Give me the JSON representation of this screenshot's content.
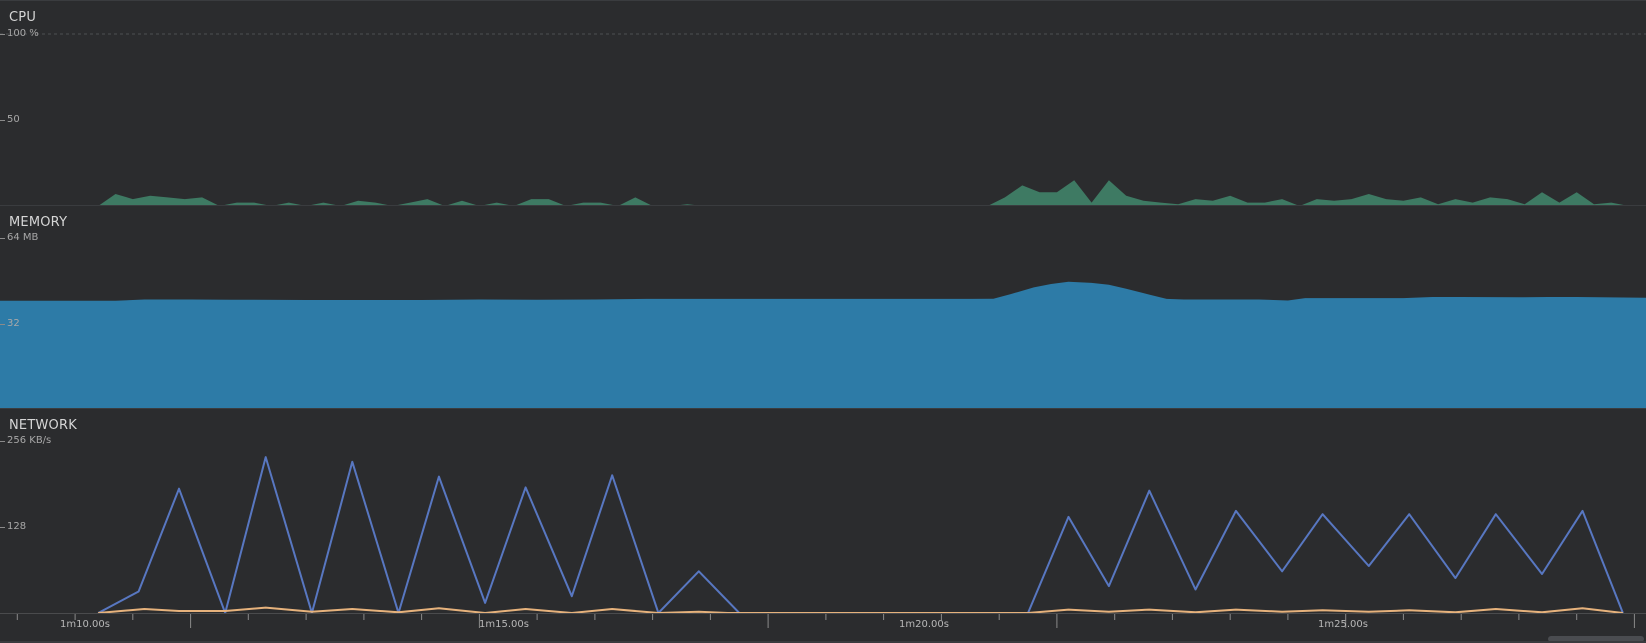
{
  "cpu": {
    "title": "CPU",
    "ticks": [
      "100 %",
      "50"
    ],
    "color": "#3e7a63",
    "chart_data": {
      "type": "area",
      "ylim": [
        0,
        100
      ],
      "x_range": [
        66.7,
        95.2
      ],
      "points": [
        [
          66.7,
          0
        ],
        [
          68.4,
          0
        ],
        [
          68.7,
          7
        ],
        [
          69.0,
          4
        ],
        [
          69.3,
          6
        ],
        [
          69.6,
          5
        ],
        [
          69.9,
          4
        ],
        [
          70.2,
          5
        ],
        [
          70.5,
          0
        ],
        [
          70.8,
          2
        ],
        [
          71.1,
          2
        ],
        [
          71.4,
          0
        ],
        [
          71.7,
          2
        ],
        [
          72.0,
          0
        ],
        [
          72.3,
          2
        ],
        [
          72.6,
          0
        ],
        [
          72.9,
          3
        ],
        [
          73.2,
          2
        ],
        [
          73.5,
          0
        ],
        [
          73.8,
          2
        ],
        [
          74.1,
          4
        ],
        [
          74.4,
          0
        ],
        [
          74.7,
          3
        ],
        [
          75.0,
          0
        ],
        [
          75.3,
          2
        ],
        [
          75.6,
          0
        ],
        [
          75.9,
          4
        ],
        [
          76.2,
          4
        ],
        [
          76.5,
          0
        ],
        [
          76.8,
          2
        ],
        [
          77.1,
          2
        ],
        [
          77.4,
          0
        ],
        [
          77.7,
          5
        ],
        [
          78.0,
          0
        ],
        [
          78.3,
          0
        ],
        [
          78.6,
          1
        ],
        [
          78.9,
          0
        ],
        [
          83.8,
          0
        ],
        [
          84.1,
          5
        ],
        [
          84.4,
          12
        ],
        [
          84.7,
          8
        ],
        [
          85.0,
          8
        ],
        [
          85.3,
          15
        ],
        [
          85.6,
          2
        ],
        [
          85.9,
          15
        ],
        [
          86.2,
          6
        ],
        [
          86.5,
          3
        ],
        [
          86.8,
          2
        ],
        [
          87.1,
          1
        ],
        [
          87.4,
          4
        ],
        [
          87.7,
          3
        ],
        [
          88.0,
          6
        ],
        [
          88.3,
          2
        ],
        [
          88.6,
          2
        ],
        [
          88.9,
          4
        ],
        [
          89.2,
          0
        ],
        [
          89.5,
          4
        ],
        [
          89.8,
          3
        ],
        [
          90.1,
          4
        ],
        [
          90.4,
          7
        ],
        [
          90.7,
          4
        ],
        [
          91.0,
          3
        ],
        [
          91.3,
          5
        ],
        [
          91.6,
          1
        ],
        [
          91.9,
          4
        ],
        [
          92.2,
          2
        ],
        [
          92.5,
          5
        ],
        [
          92.8,
          4
        ],
        [
          93.1,
          1
        ],
        [
          93.4,
          8
        ],
        [
          93.7,
          2
        ],
        [
          94.0,
          8
        ],
        [
          94.3,
          1
        ],
        [
          94.6,
          2
        ],
        [
          94.9,
          0
        ],
        [
          95.2,
          0
        ]
      ]
    }
  },
  "memory": {
    "title": "MEMORY",
    "ticks": [
      "64 MB",
      "32"
    ],
    "color": "#2d7ba7",
    "chart_data": {
      "type": "area",
      "ylim": [
        0,
        64
      ],
      "x_range": [
        66.7,
        95.2
      ],
      "points": [
        [
          66.7,
          40.5
        ],
        [
          68.7,
          40.5
        ],
        [
          69.2,
          41
        ],
        [
          70.0,
          41
        ],
        [
          70.7,
          40.9
        ],
        [
          72.0,
          40.8
        ],
        [
          74.0,
          40.8
        ],
        [
          75.0,
          41
        ],
        [
          76.0,
          40.9
        ],
        [
          77.0,
          41
        ],
        [
          77.9,
          41.2
        ],
        [
          79.0,
          41.2
        ],
        [
          81.0,
          41.2
        ],
        [
          83.5,
          41.2
        ],
        [
          83.9,
          41.3
        ],
        [
          84.2,
          43
        ],
        [
          84.6,
          45.5
        ],
        [
          84.9,
          46.8
        ],
        [
          85.2,
          47.6
        ],
        [
          85.6,
          47.2
        ],
        [
          85.9,
          46.5
        ],
        [
          86.2,
          45
        ],
        [
          86.6,
          42.8
        ],
        [
          86.9,
          41.2
        ],
        [
          87.2,
          41
        ],
        [
          88.0,
          41
        ],
        [
          88.5,
          41
        ],
        [
          89.0,
          40.6
        ],
        [
          89.3,
          41.5
        ],
        [
          90.0,
          41.5
        ],
        [
          91.0,
          41.5
        ],
        [
          91.5,
          41.9
        ],
        [
          92.0,
          41.9
        ],
        [
          93.0,
          41.8
        ],
        [
          93.5,
          41.9
        ],
        [
          94.0,
          41.9
        ],
        [
          95.2,
          41.6
        ]
      ]
    }
  },
  "network": {
    "title": "NETWORK",
    "ticks": [
      "256 KB/s",
      "128"
    ],
    "series_colors": {
      "received": "#5877c1",
      "sent": "#e6b27c"
    },
    "chart_data": {
      "type": "line",
      "ylim": [
        0,
        256
      ],
      "x_range": [
        66.7,
        95.2
      ],
      "series": [
        {
          "values": [
            [
              68.4,
              0
            ],
            [
              69.1,
              32
            ],
            [
              69.8,
              185
            ],
            [
              70.6,
              0
            ],
            [
              71.3,
              232
            ],
            [
              72.1,
              0
            ],
            [
              72.8,
              225
            ],
            [
              73.6,
              0
            ],
            [
              74.3,
              203
            ],
            [
              75.1,
              15
            ],
            [
              75.8,
              187
            ],
            [
              76.6,
              25
            ],
            [
              77.3,
              205
            ],
            [
              78.1,
              0
            ],
            [
              78.8,
              62
            ],
            [
              79.5,
              0
            ],
            [
              84.5,
              0
            ],
            [
              85.2,
              143
            ],
            [
              85.9,
              40
            ],
            [
              86.6,
              182
            ],
            [
              87.4,
              35
            ],
            [
              88.1,
              152
            ],
            [
              88.9,
              62
            ],
            [
              89.6,
              147
            ],
            [
              90.4,
              70
            ],
            [
              91.1,
              147
            ],
            [
              91.9,
              52
            ],
            [
              92.6,
              147
            ],
            [
              93.4,
              58
            ],
            [
              94.1,
              152
            ],
            [
              94.8,
              0
            ]
          ]
        },
        {
          "values": [
            [
              68.4,
              0
            ],
            [
              69.2,
              6
            ],
            [
              69.8,
              3
            ],
            [
              70.6,
              3
            ],
            [
              71.3,
              8
            ],
            [
              72.1,
              2
            ],
            [
              72.8,
              6
            ],
            [
              73.6,
              1
            ],
            [
              74.3,
              7
            ],
            [
              75.1,
              0
            ],
            [
              75.8,
              6
            ],
            [
              76.6,
              0
            ],
            [
              77.3,
              6
            ],
            [
              78.1,
              0
            ],
            [
              78.8,
              2
            ],
            [
              79.3,
              0
            ],
            [
              84.5,
              0
            ],
            [
              85.2,
              5
            ],
            [
              85.9,
              2
            ],
            [
              86.6,
              5
            ],
            [
              87.4,
              1
            ],
            [
              88.1,
              5
            ],
            [
              88.9,
              2
            ],
            [
              89.6,
              4
            ],
            [
              90.4,
              2
            ],
            [
              91.1,
              4
            ],
            [
              91.9,
              1
            ],
            [
              92.6,
              6
            ],
            [
              93.4,
              1
            ],
            [
              94.1,
              7
            ],
            [
              94.8,
              0
            ]
          ]
        }
      ]
    }
  },
  "timeline": {
    "labels": [
      "1m10.00s",
      "1m15.00s",
      "1m20.00s",
      "1m25.00s"
    ],
    "label_times": [
      70,
      75,
      80,
      85
    ],
    "range": [
      66.7,
      95.2
    ]
  }
}
